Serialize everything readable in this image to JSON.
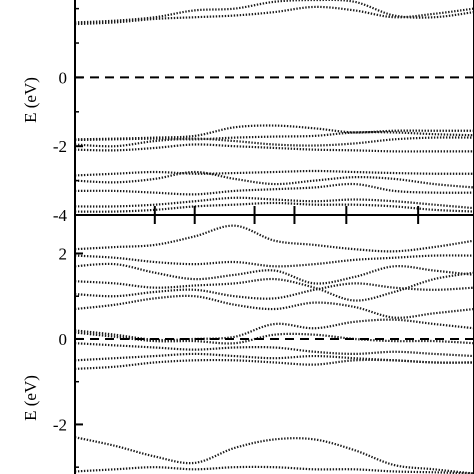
{
  "chart_data": [
    {
      "type": "line",
      "panel": "upper",
      "ylabel": "E (eV)",
      "ylim": [
        -4,
        2.6
      ],
      "yticks": [
        -4,
        -2,
        0
      ],
      "ytick_labels": [
        "-4",
        "-2",
        "0"
      ],
      "xlim": [
        0,
        1
      ],
      "high_symmetry_ticks": [
        0.2,
        0.3,
        0.45,
        0.55,
        0.68,
        0.86
      ],
      "fermi_level": 0,
      "grid": false,
      "marker": "dotted",
      "series": [
        {
          "x": [
            0,
            0.1,
            0.2,
            0.3,
            0.4,
            0.5,
            0.6,
            0.7,
            0.8,
            0.9,
            1.0
          ],
          "values": [
            1.55,
            1.6,
            1.7,
            1.75,
            1.8,
            1.9,
            2.05,
            1.95,
            1.75,
            1.85,
            2.0
          ]
        },
        {
          "x": [
            0,
            0.1,
            0.2,
            0.3,
            0.4,
            0.5,
            0.6,
            0.7,
            0.8,
            0.9,
            1.0
          ],
          "values": [
            1.6,
            1.65,
            1.75,
            1.95,
            2.0,
            2.2,
            2.25,
            2.2,
            1.8,
            1.75,
            1.9
          ]
        },
        {
          "x": [
            0,
            0.1,
            0.2,
            0.3,
            0.4,
            0.5,
            0.6,
            0.7,
            0.8,
            0.9,
            1.0
          ],
          "values": [
            -1.8,
            -1.78,
            -1.75,
            -1.7,
            -1.45,
            -1.4,
            -1.48,
            -1.6,
            -1.55,
            -1.55,
            -1.55
          ]
        },
        {
          "x": [
            0,
            0.1,
            0.2,
            0.3,
            0.4,
            0.5,
            0.6,
            0.7,
            0.8,
            0.9,
            1.0
          ],
          "values": [
            -1.82,
            -1.8,
            -1.78,
            -1.8,
            -1.75,
            -1.72,
            -1.7,
            -1.6,
            -1.6,
            -1.65,
            -1.68
          ]
        },
        {
          "x": [
            0,
            0.1,
            0.2,
            0.3,
            0.4,
            0.5,
            0.6,
            0.7,
            0.8,
            0.9,
            1.0
          ],
          "values": [
            -1.95,
            -2.0,
            -1.85,
            -1.78,
            -1.85,
            -1.95,
            -1.98,
            -1.92,
            -1.8,
            -1.75,
            -1.75
          ]
        },
        {
          "x": [
            0,
            0.1,
            0.2,
            0.3,
            0.4,
            0.5,
            0.6,
            0.7,
            0.8,
            0.9,
            1.0
          ],
          "values": [
            -2.1,
            -2.12,
            -2.05,
            -1.95,
            -2.0,
            -2.05,
            -2.1,
            -2.12,
            -2.15,
            -2.15,
            -2.15
          ]
        },
        {
          "x": [
            0,
            0.1,
            0.2,
            0.3,
            0.4,
            0.5,
            0.6,
            0.7,
            0.8,
            0.9,
            1.0
          ],
          "values": [
            -2.85,
            -2.8,
            -2.75,
            -2.8,
            -2.78,
            -2.75,
            -2.72,
            -2.75,
            -2.78,
            -2.8,
            -2.8
          ]
        },
        {
          "x": [
            0,
            0.1,
            0.2,
            0.3,
            0.4,
            0.5,
            0.6,
            0.7,
            0.8,
            0.9,
            1.0
          ],
          "values": [
            -3.0,
            -3.05,
            -2.95,
            -2.75,
            -2.95,
            -3.1,
            -3.0,
            -2.9,
            -2.95,
            -3.1,
            -3.2
          ]
        },
        {
          "x": [
            0,
            0.1,
            0.2,
            0.3,
            0.4,
            0.5,
            0.6,
            0.7,
            0.8,
            0.9,
            1.0
          ],
          "values": [
            -3.3,
            -3.3,
            -3.35,
            -3.4,
            -3.3,
            -3.25,
            -3.2,
            -3.1,
            -3.3,
            -3.35,
            -3.35
          ]
        },
        {
          "x": [
            0,
            0.1,
            0.2,
            0.3,
            0.4,
            0.5,
            0.6,
            0.7,
            0.8,
            0.9,
            1.0
          ],
          "values": [
            -3.75,
            -3.75,
            -3.7,
            -3.6,
            -3.5,
            -3.55,
            -3.6,
            -3.55,
            -3.6,
            -3.7,
            -3.8
          ]
        },
        {
          "x": [
            0,
            0.1,
            0.2,
            0.3,
            0.4,
            0.5,
            0.6,
            0.7,
            0.8,
            0.9,
            1.0
          ],
          "values": [
            -3.9,
            -3.9,
            -3.85,
            -3.75,
            -3.7,
            -3.65,
            -3.7,
            -3.7,
            -3.75,
            -3.85,
            -3.9
          ]
        }
      ]
    },
    {
      "type": "line",
      "panel": "lower",
      "ylabel": "E (eV)",
      "ylim": [
        -3.3,
        2.9
      ],
      "yticks": [
        -2,
        0,
        2
      ],
      "ytick_labels": [
        "-2",
        "0",
        "2"
      ],
      "xlim": [
        0,
        1
      ],
      "high_symmetry_ticks": [
        0.2,
        0.3,
        0.45,
        0.55,
        0.68,
        0.86
      ],
      "fermi_level": 0,
      "grid": false,
      "marker": "dotted",
      "series": [
        {
          "x": [
            0,
            0.1,
            0.2,
            0.3,
            0.4,
            0.5,
            0.6,
            0.7,
            0.8,
            0.9,
            1.0
          ],
          "values": [
            2.1,
            2.15,
            2.2,
            2.4,
            2.65,
            2.3,
            2.2,
            2.1,
            2.05,
            2.15,
            2.3
          ]
        },
        {
          "x": [
            0,
            0.1,
            0.2,
            0.3,
            0.4,
            0.5,
            0.6,
            0.7,
            0.8,
            0.9,
            1.0
          ],
          "values": [
            1.95,
            1.9,
            1.8,
            1.75,
            1.8,
            1.7,
            1.75,
            1.85,
            1.9,
            1.95,
            1.95
          ]
        },
        {
          "x": [
            0,
            0.1,
            0.2,
            0.3,
            0.4,
            0.5,
            0.6,
            0.7,
            0.8,
            0.9,
            1.0
          ],
          "values": [
            1.7,
            1.75,
            1.55,
            1.4,
            1.5,
            1.6,
            1.3,
            1.45,
            1.7,
            1.6,
            1.5
          ]
        },
        {
          "x": [
            0,
            0.1,
            0.2,
            0.3,
            0.4,
            0.5,
            0.6,
            0.7,
            0.8,
            0.9,
            1.0
          ],
          "values": [
            1.35,
            1.3,
            1.2,
            1.25,
            1.3,
            1.4,
            1.2,
            0.9,
            1.1,
            1.4,
            1.55
          ]
        },
        {
          "x": [
            0,
            0.1,
            0.2,
            0.3,
            0.4,
            0.5,
            0.6,
            0.7,
            0.8,
            0.9,
            1.0
          ],
          "values": [
            1.05,
            1.0,
            1.1,
            1.15,
            1.0,
            0.95,
            1.15,
            1.3,
            1.2,
            1.15,
            1.2
          ]
        },
        {
          "x": [
            0,
            0.1,
            0.2,
            0.3,
            0.4,
            0.5,
            0.6,
            0.7,
            0.8,
            0.9,
            1.0
          ],
          "values": [
            0.7,
            0.8,
            0.95,
            1.0,
            0.8,
            0.7,
            0.85,
            0.75,
            0.5,
            0.6,
            0.7
          ]
        },
        {
          "x": [
            0,
            0.1,
            0.2,
            0.3,
            0.4,
            0.5,
            0.6,
            0.7,
            0.8,
            0.9,
            1.0
          ],
          "values": [
            0.2,
            0.1,
            -0.02,
            0.0,
            0.05,
            0.35,
            0.25,
            0.4,
            0.45,
            0.35,
            0.25
          ]
        },
        {
          "x": [
            0,
            0.1,
            0.2,
            0.3,
            0.4,
            0.5,
            0.6,
            0.7,
            0.8,
            0.9,
            1.0
          ],
          "values": [
            0.15,
            0.05,
            -0.05,
            -0.05,
            -0.1,
            0.1,
            0.1,
            0.0,
            -0.05,
            -0.05,
            -0.1
          ]
        },
        {
          "x": [
            0,
            0.1,
            0.2,
            0.3,
            0.4,
            0.5,
            0.6,
            0.7,
            0.8,
            0.9,
            1.0
          ],
          "values": [
            -0.1,
            -0.15,
            -0.2,
            -0.25,
            -0.2,
            -0.2,
            -0.3,
            -0.35,
            -0.3,
            -0.35,
            -0.4
          ]
        },
        {
          "x": [
            0,
            0.1,
            0.2,
            0.3,
            0.4,
            0.5,
            0.6,
            0.7,
            0.8,
            0.9,
            1.0
          ],
          "values": [
            -0.5,
            -0.45,
            -0.4,
            -0.35,
            -0.4,
            -0.45,
            -0.4,
            -0.45,
            -0.5,
            -0.55,
            -0.55
          ]
        },
        {
          "x": [
            0,
            0.1,
            0.2,
            0.3,
            0.4,
            0.5,
            0.6,
            0.7,
            0.8,
            0.9,
            1.0
          ],
          "values": [
            -0.7,
            -0.65,
            -0.55,
            -0.5,
            -0.5,
            -0.55,
            -0.6,
            -0.5,
            -0.5,
            -0.55,
            -0.55
          ]
        },
        {
          "x": [
            0,
            0.1,
            0.2,
            0.3,
            0.4,
            0.5,
            0.6,
            0.7,
            0.8,
            0.9,
            1.0
          ],
          "values": [
            -2.3,
            -2.5,
            -2.75,
            -2.9,
            -2.55,
            -2.35,
            -2.35,
            -2.6,
            -2.95,
            -3.05,
            -3.15
          ]
        },
        {
          "x": [
            0,
            0.1,
            0.2,
            0.3,
            0.4,
            0.5,
            0.6,
            0.7,
            0.8,
            0.9,
            1.0
          ],
          "values": [
            -3.1,
            -3.05,
            -3.0,
            -3.05,
            -3.0,
            -3.0,
            -3.05,
            -3.05,
            -3.1,
            -3.12,
            -3.15
          ]
        }
      ]
    }
  ]
}
